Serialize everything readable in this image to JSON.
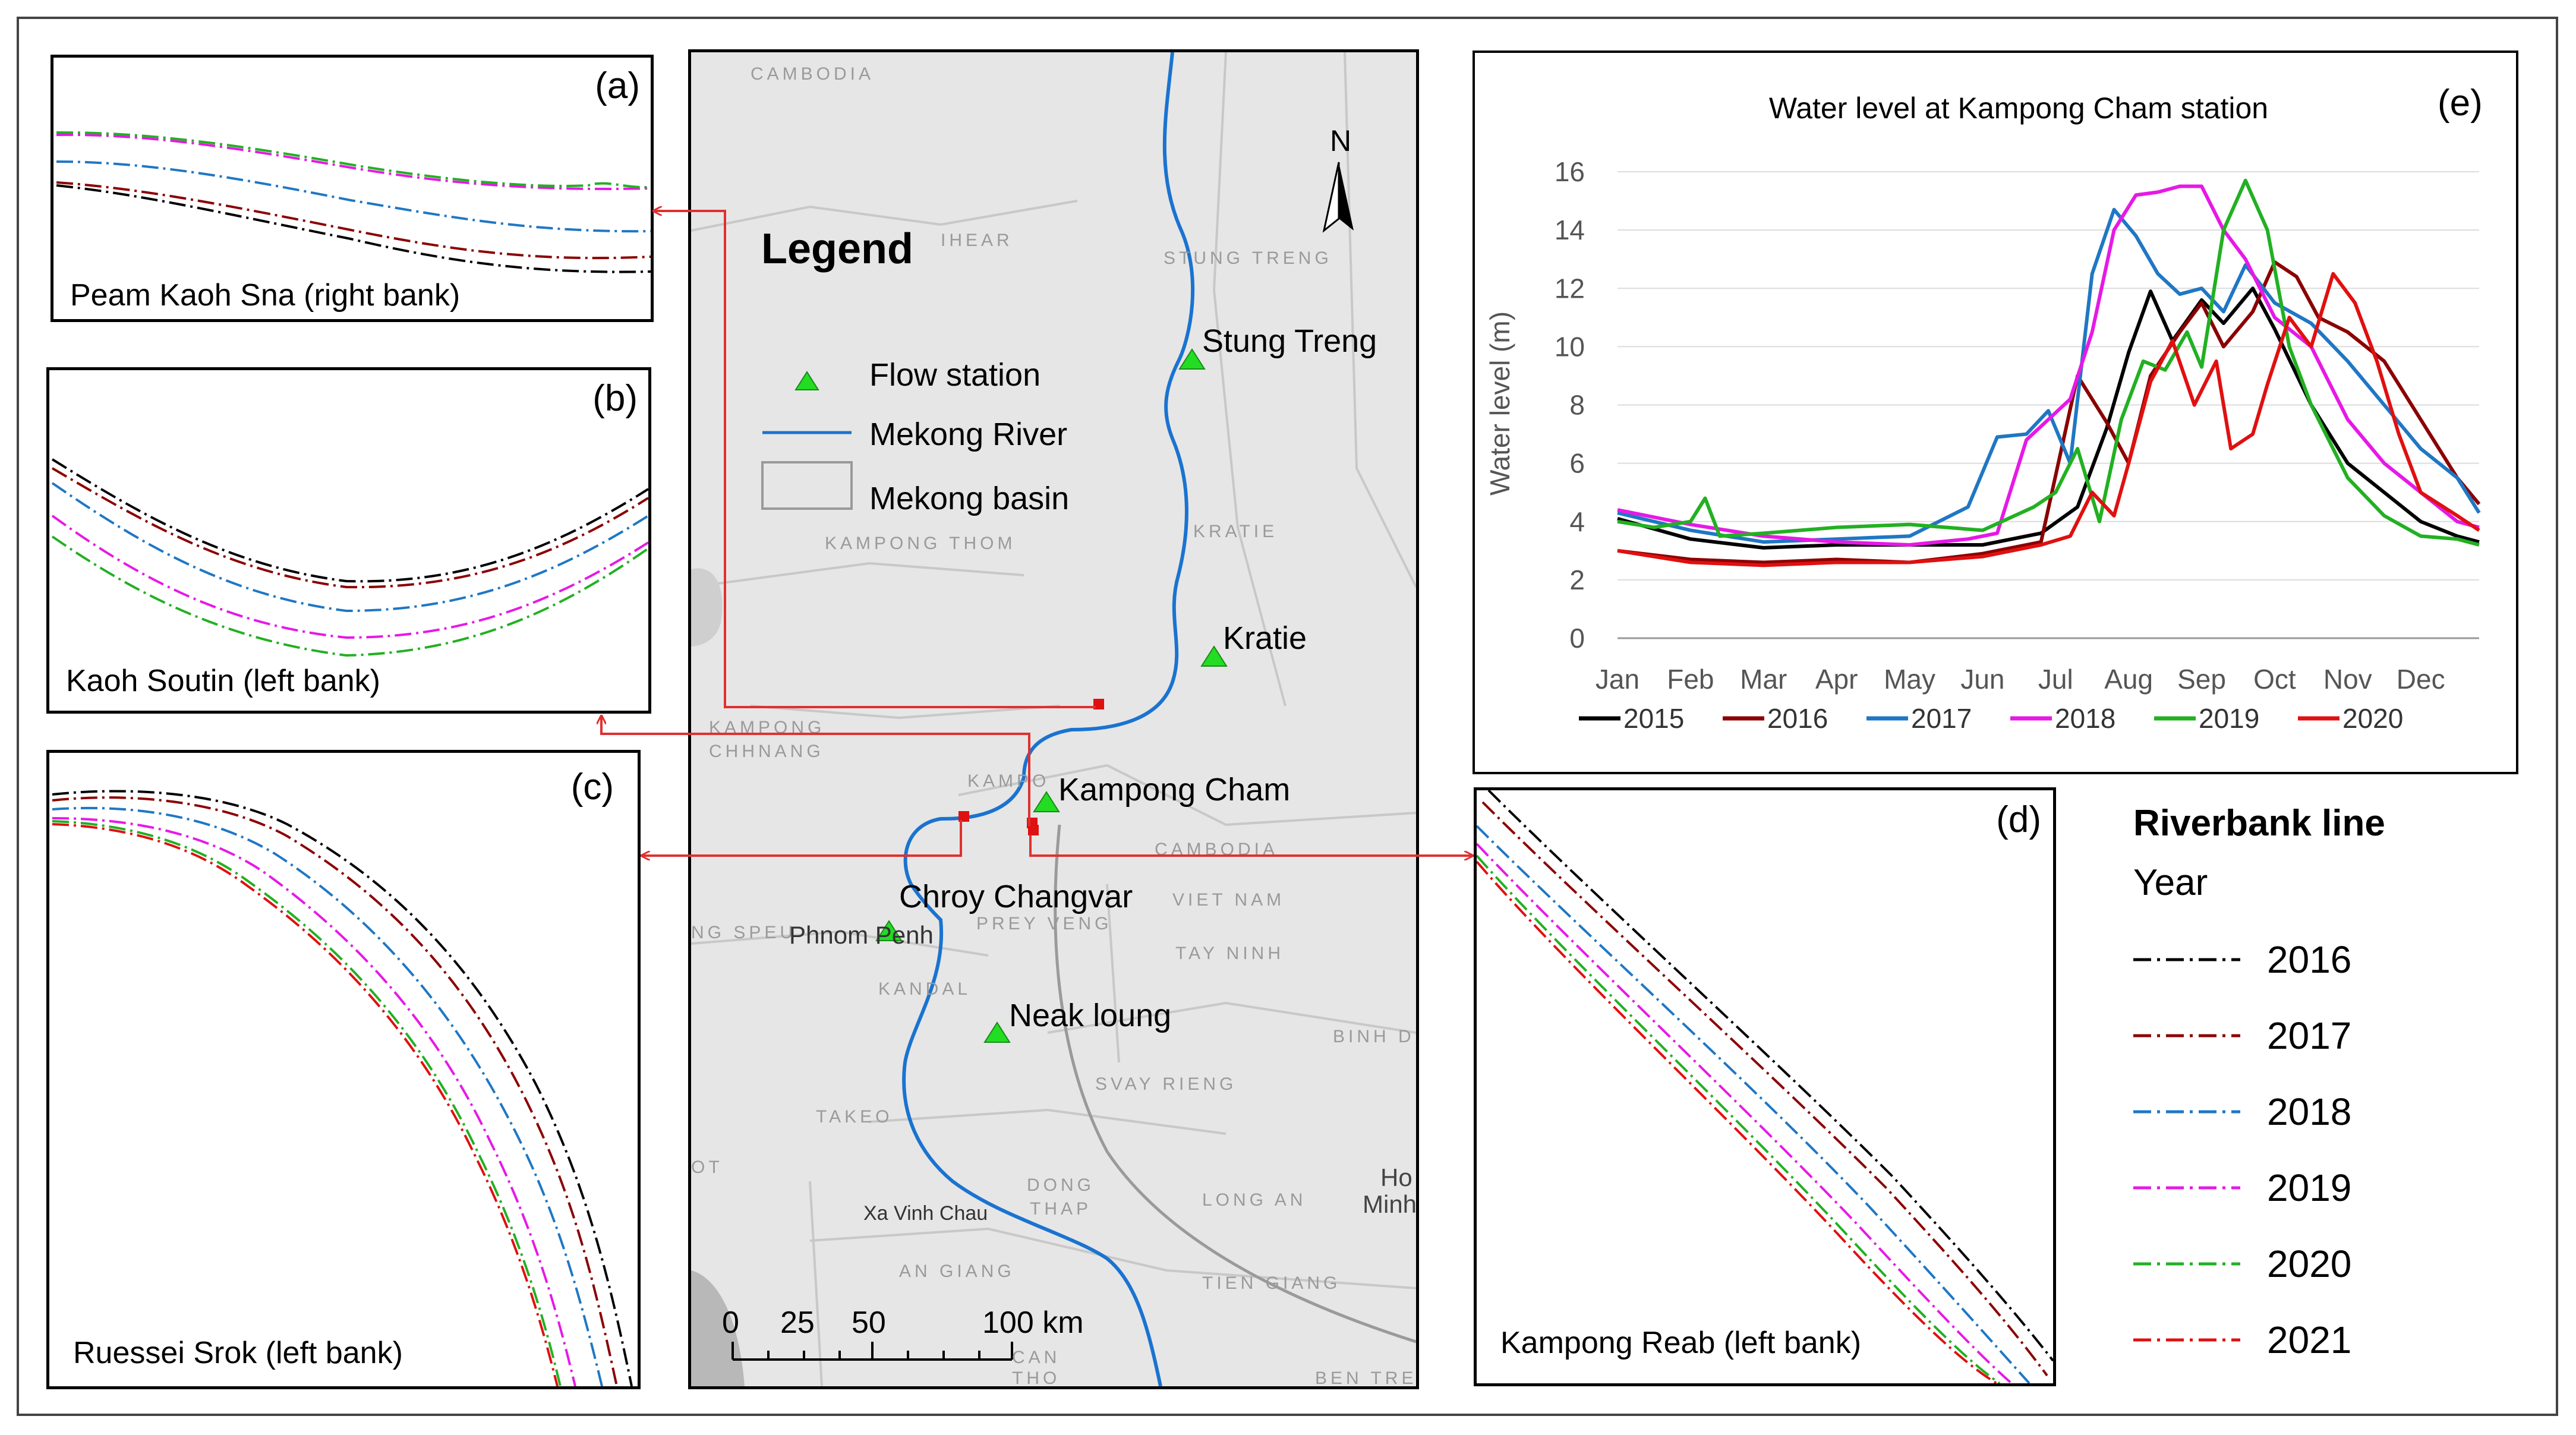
{
  "panels": {
    "a": {
      "label": "(a)",
      "caption": "Peam Kaoh Sna (right bank)"
    },
    "b": {
      "label": "(b)",
      "caption": "Kaoh Soutin (left bank)"
    },
    "c": {
      "label": "(c)",
      "caption": "Ruessei Srok (left bank)"
    },
    "d": {
      "label": "(d)",
      "caption": "Kampong Reab (left bank)"
    },
    "e": {
      "label": "(e)"
    }
  },
  "map": {
    "legend_title": "Legend",
    "legend_items": [
      "Flow station",
      "Mekong River",
      "Mekong basin"
    ],
    "north": "N",
    "scale_labels": [
      "0",
      "25",
      "50",
      "100 km"
    ],
    "stations": [
      "Stung Treng",
      "Kratie",
      "Kampong Cham",
      "Chroy Changvar",
      "Neak loung"
    ],
    "place_names": [
      "CAMBODIA",
      "IHEAR",
      "STUNG TRENG",
      "KRATIE",
      "KAMPONG THOM",
      "KAMPONG",
      "CHHNANG",
      "KAMPO",
      "CAMBODIA",
      "VIET NAM",
      "NG SPEU",
      "Phnom Penh",
      "PREY VENG",
      "TAY NINH",
      "KANDAL",
      "BINH D",
      "SVAY RIENG",
      "TAKEO",
      "OT",
      "DONG",
      "THAP",
      "LONG AN",
      "Ho",
      "Minh",
      "Xa Vinh Chau",
      "AN GIANG",
      "TIEN GIANG",
      "CAN",
      "THO",
      "BEN TRE"
    ]
  },
  "legend": {
    "title": "Riverbank line",
    "year_label": "Year",
    "items": [
      {
        "year": "2016",
        "color": "#000000"
      },
      {
        "year": "2017",
        "color": "#8b0000"
      },
      {
        "year": "2018",
        "color": "#1f77c4"
      },
      {
        "year": "2019",
        "color": "#e619e6"
      },
      {
        "year": "2020",
        "color": "#22b022"
      },
      {
        "year": "2021",
        "color": "#e01010"
      }
    ]
  },
  "colors": {
    "river": "#1a73d0",
    "station": "#22dd22",
    "connector": "#e03030",
    "basin": "#c8c8c8"
  },
  "chart_data": {
    "type": "line",
    "title": "Water level at Kampong Cham station",
    "ylabel": "Water level (m)",
    "xlabel": "",
    "ylim": [
      0,
      16
    ],
    "yticks": [
      0,
      2,
      4,
      6,
      8,
      10,
      12,
      14,
      16
    ],
    "categories": [
      "Jan",
      "Feb",
      "Mar",
      "Apr",
      "May",
      "Jun",
      "Jul",
      "Aug",
      "Sep",
      "Oct",
      "Nov",
      "Dec"
    ],
    "legend_position": "bottom",
    "series": [
      {
        "name": "2015",
        "color": "#000000",
        "x": [
          0,
          1,
          2,
          3,
          4,
          5,
          5.8,
          6.3,
          6.7,
          7.0,
          7.3,
          7.6,
          8.0,
          8.3,
          8.7,
          9.0,
          9.5,
          10.0,
          10.5,
          11.0,
          11.5,
          11.8
        ],
        "y": [
          4.1,
          3.4,
          3.1,
          3.2,
          3.2,
          3.2,
          3.6,
          4.5,
          7.2,
          9.8,
          11.9,
          10.2,
          11.6,
          10.8,
          12.0,
          10.6,
          8.0,
          6.0,
          5.0,
          4.0,
          3.5,
          3.3
        ]
      },
      {
        "name": "2016",
        "color": "#8b0000",
        "x": [
          0,
          1,
          2,
          3,
          4,
          5,
          5.8,
          6.3,
          6.7,
          7.0,
          7.3,
          7.7,
          8.0,
          8.3,
          8.7,
          9.0,
          9.3,
          9.6,
          10.0,
          10.5,
          11.0,
          11.5,
          11.8
        ],
        "y": [
          3.0,
          2.7,
          2.6,
          2.7,
          2.6,
          2.9,
          3.3,
          9.0,
          7.4,
          6.0,
          9.0,
          10.5,
          11.5,
          10.0,
          11.2,
          12.9,
          12.4,
          11.0,
          10.5,
          9.5,
          7.5,
          5.5,
          4.6
        ]
      },
      {
        "name": "2017",
        "color": "#1f77c4",
        "x": [
          0,
          1,
          2,
          3,
          4,
          4.8,
          5.2,
          5.6,
          5.9,
          6.2,
          6.5,
          6.8,
          7.1,
          7.4,
          7.7,
          8.0,
          8.3,
          8.6,
          9.0,
          9.5,
          10.0,
          10.5,
          11.0,
          11.5,
          11.8
        ],
        "y": [
          4.3,
          3.7,
          3.3,
          3.4,
          3.5,
          4.5,
          6.9,
          7.0,
          7.8,
          6.0,
          12.5,
          14.7,
          13.8,
          12.5,
          11.8,
          12.0,
          11.2,
          12.8,
          11.5,
          10.8,
          9.5,
          8.0,
          6.5,
          5.5,
          4.3
        ]
      },
      {
        "name": "2018",
        "color": "#e619e6",
        "x": [
          0,
          1,
          2,
          3,
          4,
          4.8,
          5.2,
          5.6,
          5.9,
          6.2,
          6.5,
          6.8,
          7.1,
          7.4,
          7.7,
          8.0,
          8.3,
          8.6,
          9.0,
          9.5,
          10.0,
          10.5,
          11.0,
          11.5,
          11.8
        ],
        "y": [
          4.4,
          3.9,
          3.5,
          3.3,
          3.2,
          3.4,
          3.6,
          6.8,
          7.5,
          8.2,
          10.5,
          14.0,
          15.2,
          15.3,
          15.5,
          15.5,
          14.0,
          13.0,
          11.0,
          10.0,
          7.5,
          6.0,
          5.0,
          4.0,
          3.8
        ]
      },
      {
        "name": "2019",
        "color": "#22b022",
        "x": [
          0,
          0.5,
          1,
          1.2,
          1.4,
          2,
          3,
          4,
          5,
          5.7,
          6.0,
          6.3,
          6.6,
          6.9,
          7.2,
          7.5,
          7.8,
          8.0,
          8.3,
          8.6,
          8.9,
          9.2,
          9.5,
          10.0,
          10.5,
          11.0,
          11.5,
          11.8
        ],
        "y": [
          4.0,
          3.8,
          4.0,
          4.8,
          3.5,
          3.6,
          3.8,
          3.9,
          3.7,
          4.5,
          5.0,
          6.5,
          4.0,
          7.5,
          9.5,
          9.2,
          10.5,
          9.3,
          14.0,
          15.7,
          14.0,
          10.0,
          8.0,
          5.5,
          4.2,
          3.5,
          3.4,
          3.2
        ]
      },
      {
        "name": "2020",
        "color": "#e01010",
        "x": [
          0,
          1,
          2,
          3,
          4,
          5,
          5.8,
          6.2,
          6.5,
          6.8,
          7.0,
          7.3,
          7.6,
          7.9,
          8.2,
          8.4,
          8.7,
          8.9,
          9.2,
          9.5,
          9.8,
          10.1,
          10.4,
          10.7,
          11.0,
          11.5,
          11.8
        ],
        "y": [
          3.0,
          2.6,
          2.5,
          2.6,
          2.6,
          2.8,
          3.2,
          3.5,
          5.0,
          4.2,
          6.0,
          8.8,
          10.2,
          8.0,
          9.5,
          6.5,
          7.0,
          8.7,
          11.0,
          10.0,
          12.5,
          11.5,
          9.5,
          7.0,
          5.0,
          4.2,
          3.7
        ]
      }
    ]
  }
}
